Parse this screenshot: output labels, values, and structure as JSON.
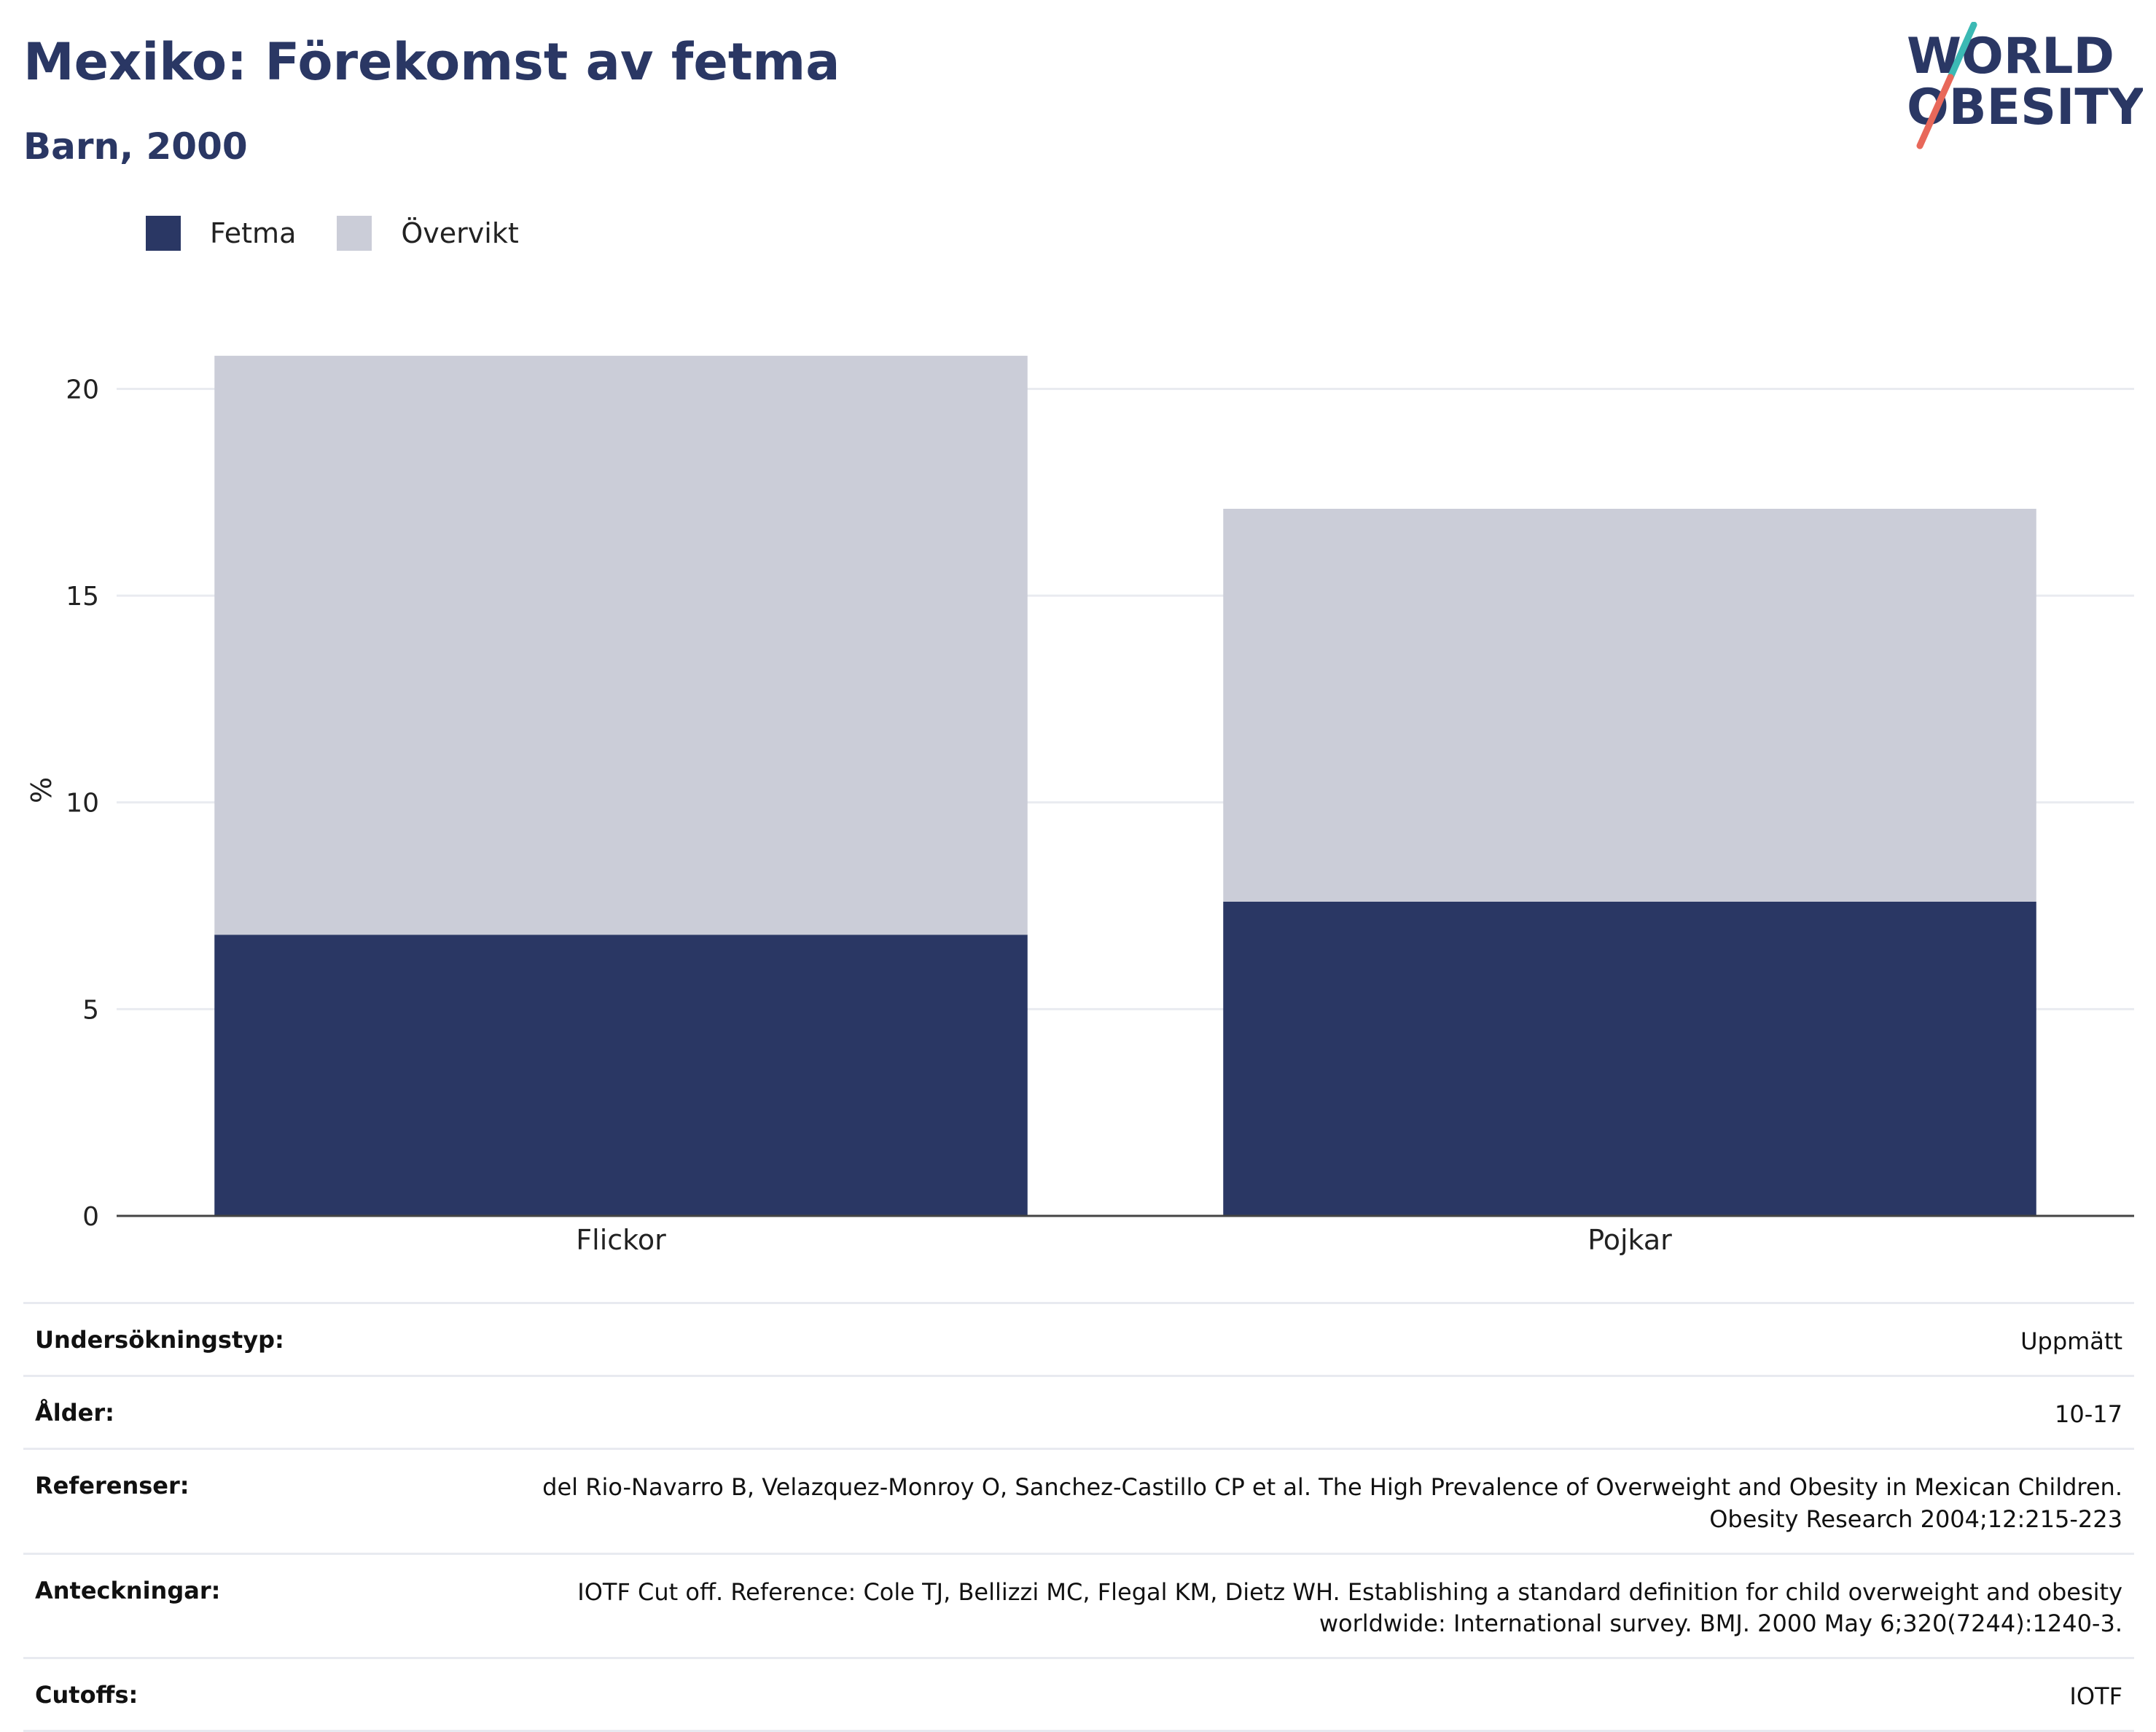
{
  "header": {
    "title": "Mexiko: Förekomst av fetma",
    "subtitle": "Barn, 2000"
  },
  "logo": {
    "line1": "WORLD",
    "line2": "OBESITY"
  },
  "colors": {
    "fetma": "#2a3764",
    "overvikt": "#cbcdd8",
    "text": "#2a3764"
  },
  "chart_data": {
    "type": "bar",
    "stacked": true,
    "categories": [
      "Flickor",
      "Pojkar"
    ],
    "series": [
      {
        "name": "Fetma",
        "values": [
          6.8,
          7.6
        ]
      },
      {
        "name": "Övervikt",
        "values": [
          14.0,
          9.5
        ]
      }
    ],
    "ylabel": "%",
    "ylim": [
      0,
      22
    ],
    "yticks": [
      0,
      5,
      10,
      15,
      20
    ],
    "grid": true,
    "legend": "top-left"
  },
  "info": [
    {
      "key": "Undersökningstyp:",
      "value": "Uppmätt"
    },
    {
      "key": "Ålder:",
      "value": "10-17"
    },
    {
      "key": "Referenser:",
      "value": "del Rio-Navarro B, Velazquez-Monroy O, Sanchez-Castillo CP et al. The High Prevalence of Overweight and Obesity in Mexican Children. Obesity Research 2004;12:215-223"
    },
    {
      "key": "Anteckningar:",
      "value": "IOTF Cut off. Reference: Cole TJ, Bellizzi MC, Flegal KM, Dietz WH. Establishing a standard definition for child overweight and obesity worldwide: International survey. BMJ. 2000 May 6;320(7244):1240-3."
    },
    {
      "key": "Cutoffs:",
      "value": "IOTF"
    }
  ]
}
